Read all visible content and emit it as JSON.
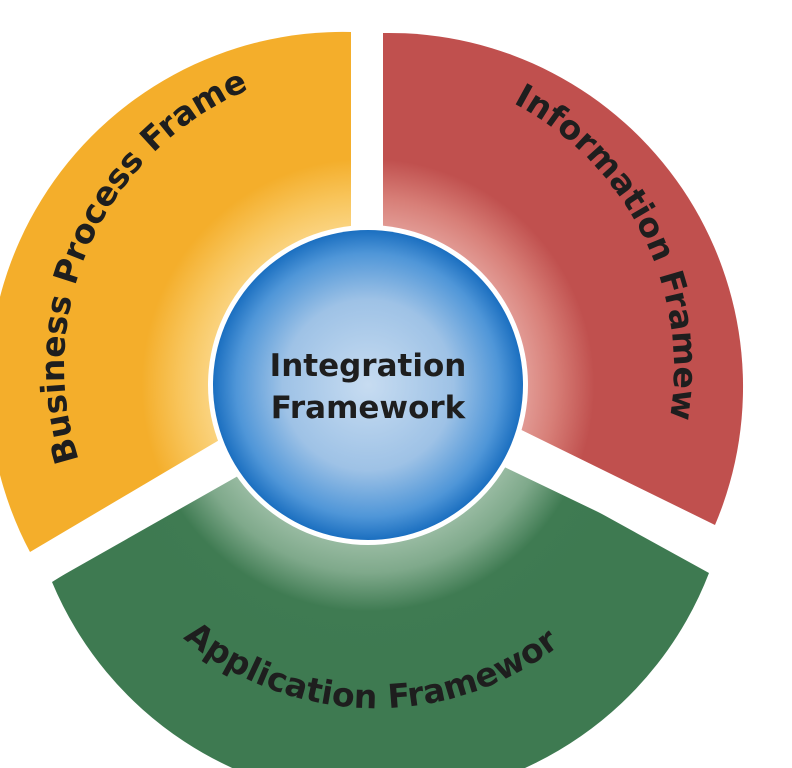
{
  "diagram": {
    "center": {
      "line1": "Integration",
      "line2": "Framework",
      "color": "#2f82cf"
    },
    "segments": [
      {
        "key": "business",
        "label": "Business Process Framework",
        "color": "#f4b12f"
      },
      {
        "key": "information",
        "label": "Information Framework",
        "color": "#c0504e"
      },
      {
        "key": "application",
        "label": "Application Framework",
        "color": "#3e7a51"
      }
    ]
  }
}
